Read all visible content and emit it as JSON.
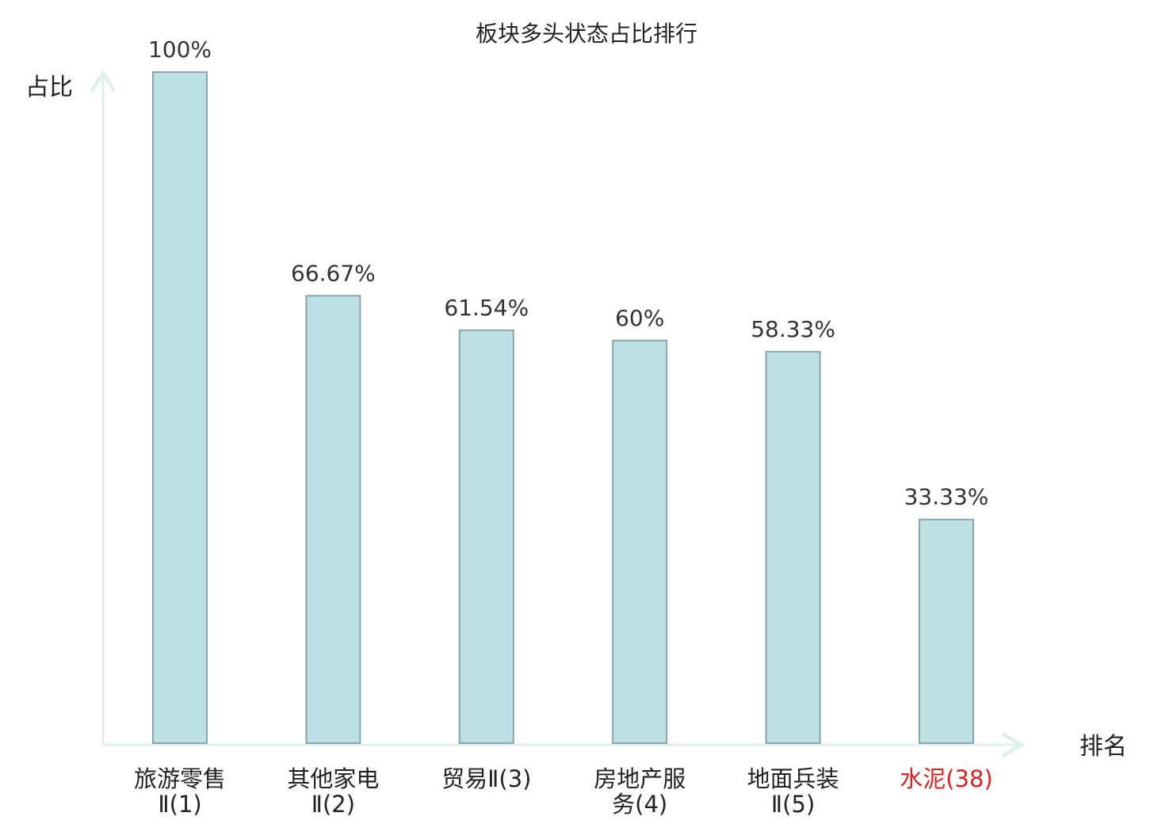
{
  "chart_data": {
    "type": "bar",
    "title": "板块多头状态占比排行",
    "ylabel": "占比",
    "xlabel": "排名",
    "ylim": [
      0,
      100
    ],
    "grid": false,
    "categories": [
      {
        "name": "旅游零售Ⅱ",
        "rank": "(1)",
        "lines": [
          "旅游零售",
          "Ⅱ(1)"
        ],
        "highlight": false
      },
      {
        "name": "其他家电",
        "rank": "(2)",
        "lines": [
          "其他家电",
          "Ⅱ(2)"
        ],
        "highlight": false
      },
      {
        "name": "贸易Ⅱ",
        "rank": "(3)",
        "lines": [
          "贸易Ⅱ(3)"
        ],
        "highlight": false
      },
      {
        "name": "房地产服务",
        "rank": "(4)",
        "lines": [
          "房地产服",
          "务(4)"
        ],
        "highlight": false
      },
      {
        "name": "地面兵装",
        "rank": "(5)",
        "lines": [
          "地面兵装",
          "Ⅱ(5)"
        ],
        "highlight": false
      },
      {
        "name": "水泥",
        "rank": "(38)",
        "lines": [
          "水泥(38)"
        ],
        "highlight": true
      }
    ],
    "values": [
      100,
      66.67,
      61.54,
      60,
      58.33,
      33.33
    ],
    "value_labels": [
      "100%",
      "66.67%",
      "61.54%",
      "60%",
      "58.33%",
      "33.33%"
    ],
    "colors": {
      "bar_fill": "#bde0e3",
      "bar_stroke": "#8aa5a9",
      "axis": "#dff1ee",
      "highlight": "#e02020",
      "text": "#222222"
    }
  }
}
